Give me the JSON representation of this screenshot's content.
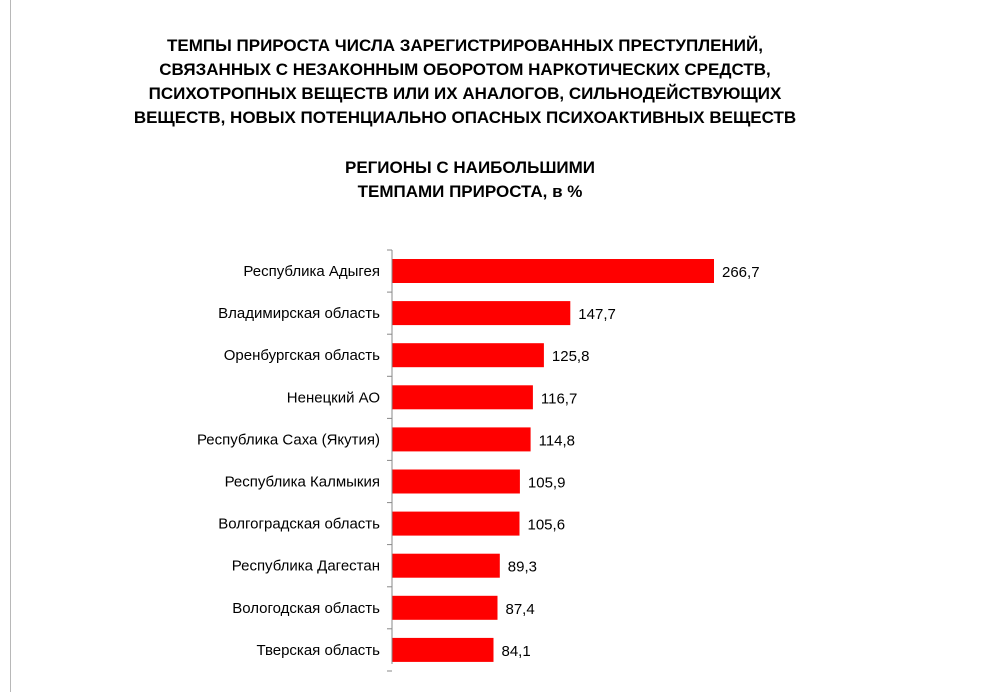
{
  "title_lines": [
    "ТЕМПЫ ПРИРОСТА ЧИСЛА ЗАРЕГИСТРИРОВАННЫХ ПРЕСТУПЛЕНИЙ,",
    "СВЯЗАННЫХ С НЕЗАКОННЫМ ОБОРОТОМ НАРКОТИЧЕСКИХ СРЕДСТВ,",
    "ПСИХОТРОПНЫХ ВЕЩЕСТВ ИЛИ ИХ АНАЛОГОВ, СИЛЬНОДЕЙСТВУЮЩИХ",
    "ВЕЩЕСТВ, НОВЫХ ПОТЕНЦИАЛЬНО ОПАСНЫХ ПСИХОАКТИВНЫХ ВЕЩЕСТВ"
  ],
  "subtitle_lines": [
    "РЕГИОНЫ С НАИБОЛЬШИМИ",
    "ТЕМПАМИ ПРИРОСТА, в %"
  ],
  "chart_data": {
    "type": "bar",
    "orientation": "horizontal",
    "title": "ТЕМПЫ ПРИРОСТА ЧИСЛА ЗАРЕГИСТРИРОВАННЫХ ПРЕСТУПЛЕНИЙ, СВЯЗАННЫХ С НЕЗАКОННЫМ ОБОРОТОМ НАРКОТИЧЕСКИХ СРЕДСТВ, ПСИХОТРОПНЫХ ВЕЩЕСТВ ИЛИ ИХ АНАЛОГОВ, СИЛЬНОДЕЙСТВУЮЩИХ ВЕЩЕСТВ, НОВЫХ ПОТЕНЦИАЛЬНО ОПАСНЫХ ПСИХОАКТИВНЫХ ВЕЩЕСТВ",
    "subtitle": "РЕГИОНЫ С НАИБОЛЬШИМИ ТЕМПАМИ ПРИРОСТА, в %",
    "categories": [
      "Республика Адыгея",
      "Владимирская область",
      "Оренбургская область",
      "Ненецкий АО",
      "Республика Саха (Якутия)",
      "Республика Калмыкия",
      "Волгоградская область",
      "Республика Дагестан",
      "Вологодская область",
      "Тверская область"
    ],
    "values": [
      266.7,
      147.7,
      125.8,
      116.7,
      114.8,
      105.9,
      105.6,
      89.3,
      87.4,
      84.1
    ],
    "value_labels": [
      "266,7",
      "147,7",
      "125,8",
      "116,7",
      "114,8",
      "105,9",
      "105,6",
      "89,3",
      "87,4",
      "84,1"
    ],
    "xlim": [
      0,
      266.7
    ],
    "xlabel": "",
    "ylabel": "",
    "grid": false,
    "legend": "none",
    "bar_color": "#ff0000",
    "axis_color": "#888888"
  }
}
